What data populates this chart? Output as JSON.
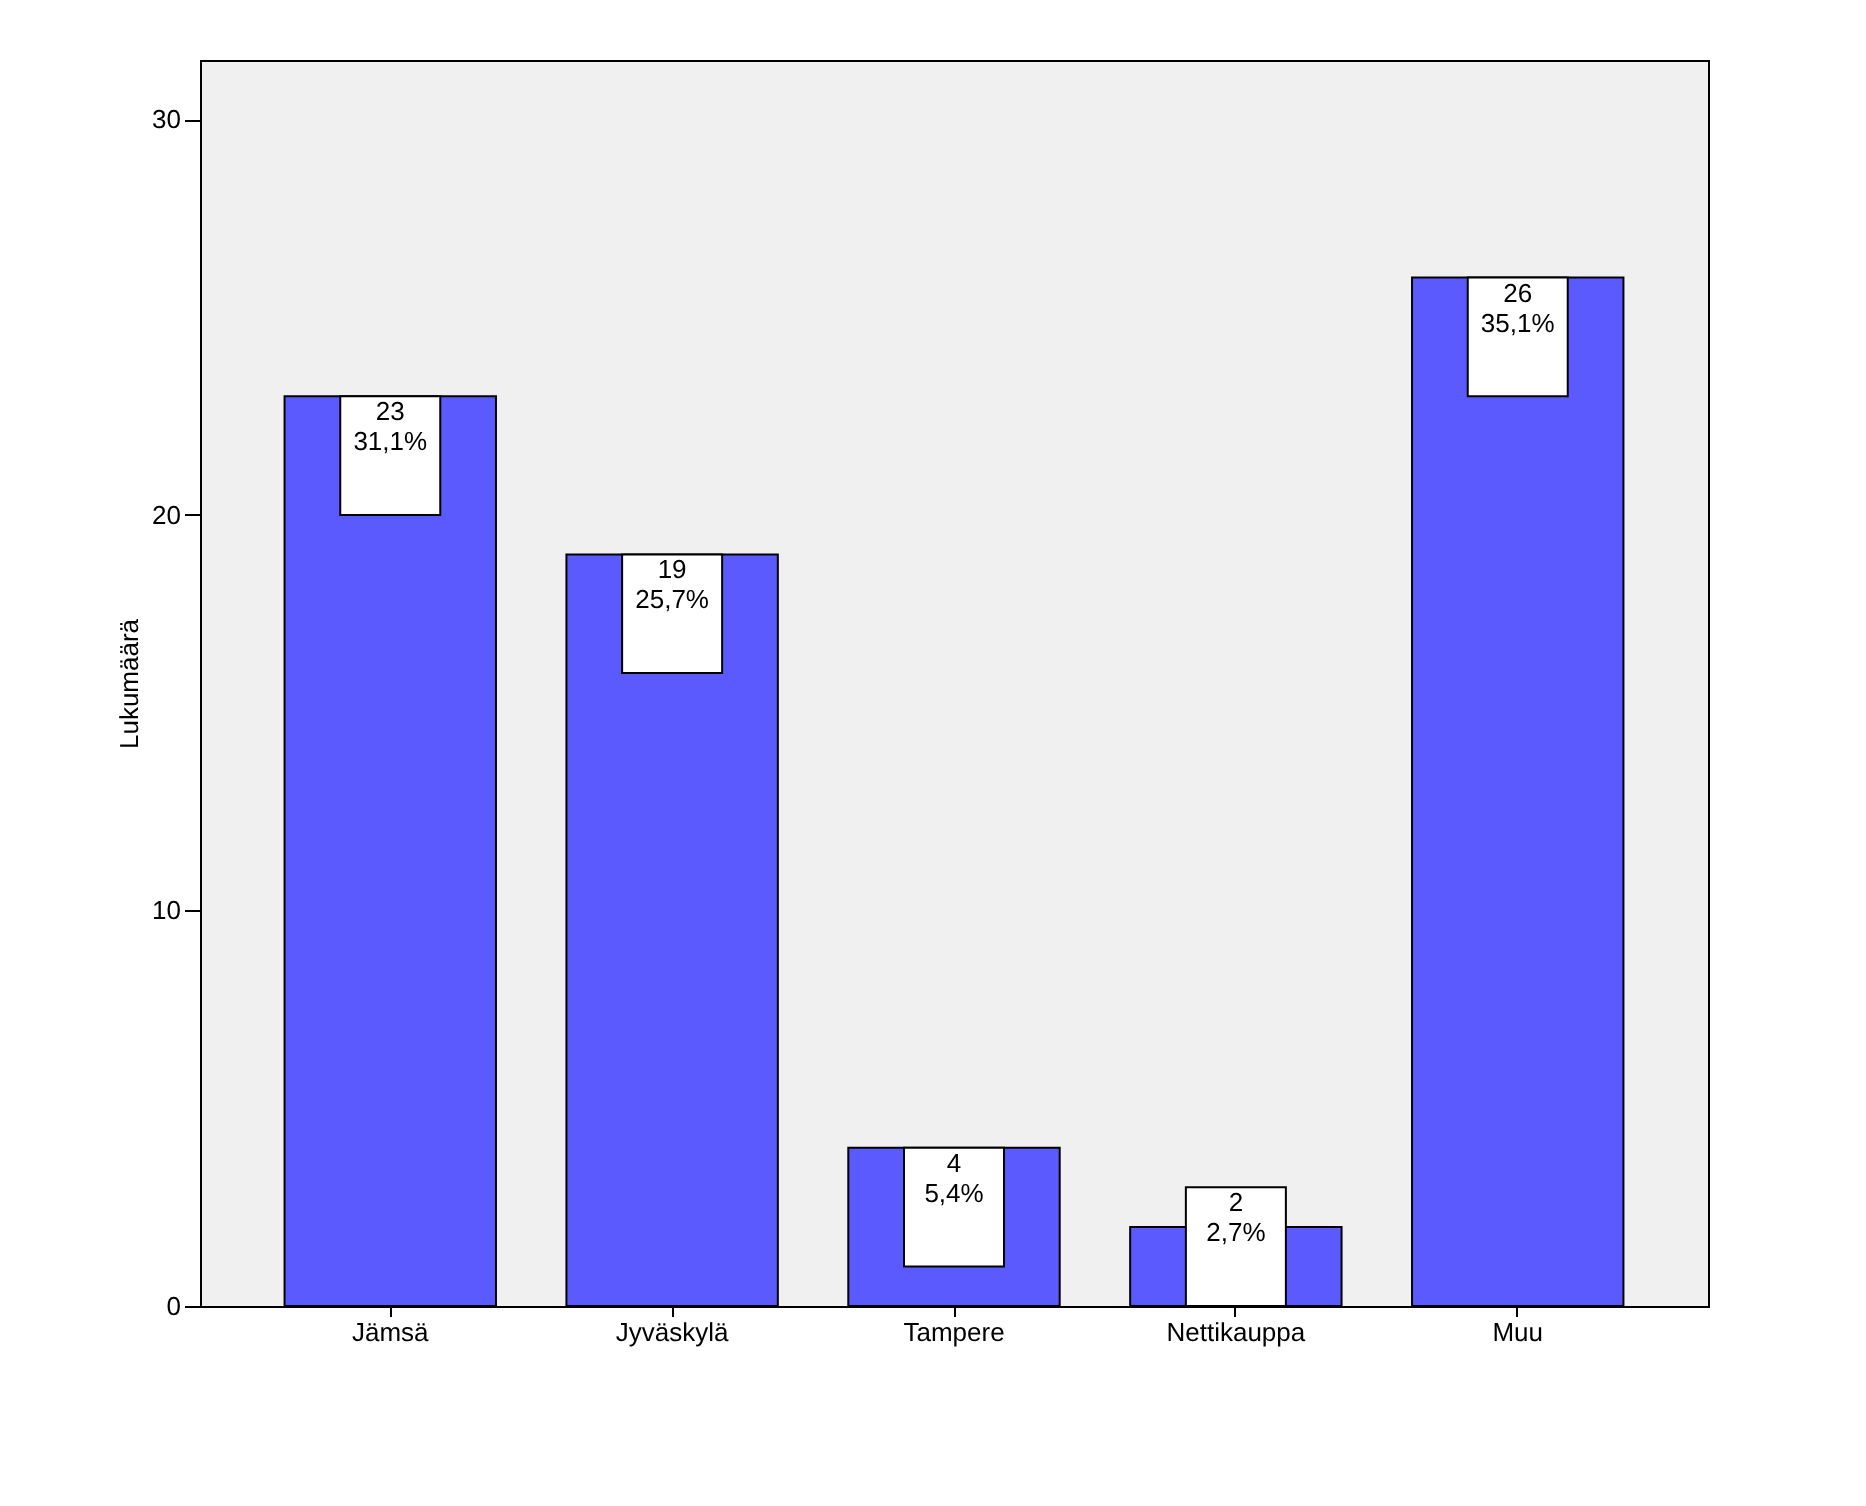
{
  "chart_data": {
    "type": "bar",
    "ylabel": "Lukumäärä",
    "categories": [
      "Jämsä",
      "Jyväskylä",
      "Tampere",
      "Nettikauppa",
      "Muu"
    ],
    "values": [
      23,
      19,
      4,
      2,
      26
    ],
    "value_labels": [
      "23\n31,1%",
      "19\n25,7%",
      "4\n5,4%",
      "2\n2,7%",
      "26\n35,1%"
    ],
    "color": "#5a5aff",
    "ylim": [
      0,
      31.5
    ],
    "yticks": [
      0,
      10,
      20,
      30
    ],
    "grid": false
  }
}
